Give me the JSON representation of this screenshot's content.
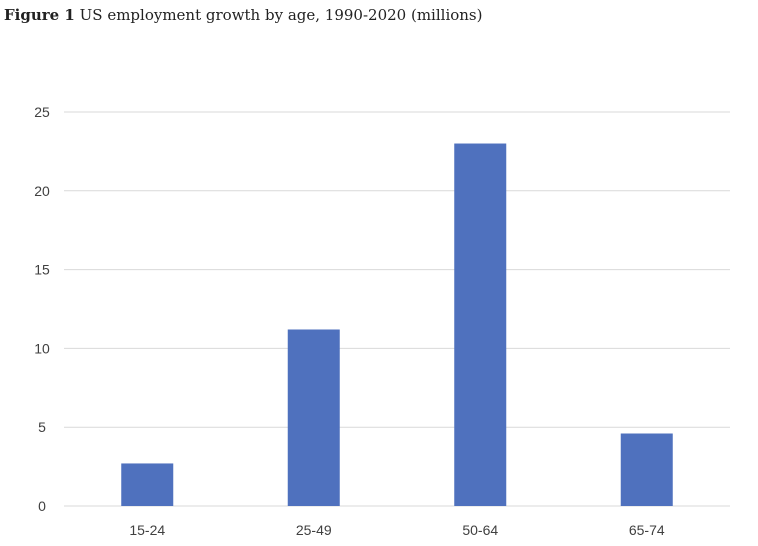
{
  "figure": {
    "label": "Figure 1",
    "caption": "US employment growth by age, 1990-2020 (millions)"
  },
  "chart_data": {
    "type": "bar",
    "categories": [
      "15-24",
      "25-49",
      "50-64",
      "65-74"
    ],
    "values": [
      2.7,
      11.2,
      23.0,
      4.6
    ],
    "title": "",
    "xlabel": "",
    "ylabel": "",
    "ylim": [
      0,
      25
    ],
    "yticks": [
      0,
      5,
      10,
      15,
      20,
      25
    ],
    "grid": true,
    "legend": "none",
    "bar_color": "#4F71BE",
    "grid_color": "#D9D9D9"
  }
}
